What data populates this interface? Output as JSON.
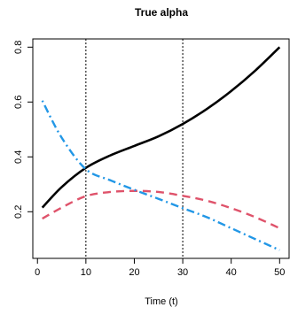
{
  "chart_data": {
    "type": "line",
    "title": "True alpha",
    "xlabel": "Time (t)",
    "ylabel": "",
    "xlim": [
      -0.96,
      51.96
    ],
    "ylim": [
      0.03,
      0.83
    ],
    "xticks": [
      0,
      10,
      20,
      30,
      40,
      50
    ],
    "yticks": [
      0.2,
      0.4,
      0.6,
      0.8
    ],
    "xtick_labels": [
      "0",
      "10",
      "20",
      "30",
      "40",
      "50"
    ],
    "ytick_labels": [
      "0.2",
      "0.4",
      "0.6",
      "0.8"
    ],
    "vlines": [
      10,
      30
    ],
    "grid": false,
    "legend": "none",
    "series": [
      {
        "style": "solid",
        "color": "#000000",
        "x": [
          1,
          5,
          10,
          15,
          20,
          25,
          30,
          35,
          40,
          45,
          50
        ],
        "y": [
          0.215,
          0.29,
          0.36,
          0.405,
          0.44,
          0.475,
          0.52,
          0.575,
          0.64,
          0.715,
          0.8
        ]
      },
      {
        "style": "dashed",
        "color": "#DF536B",
        "x": [
          1,
          5,
          10,
          15,
          20,
          25,
          30,
          35,
          40,
          45,
          50
        ],
        "y": [
          0.175,
          0.215,
          0.257,
          0.272,
          0.276,
          0.272,
          0.258,
          0.24,
          0.213,
          0.18,
          0.14
        ]
      },
      {
        "style": "dotdash",
        "color": "#2297E6",
        "x": [
          1,
          5,
          10,
          15,
          20,
          25,
          30,
          35,
          40,
          45,
          50
        ],
        "y": [
          0.605,
          0.47,
          0.355,
          0.315,
          0.28,
          0.247,
          0.213,
          0.18,
          0.14,
          0.1,
          0.06
        ]
      }
    ]
  }
}
